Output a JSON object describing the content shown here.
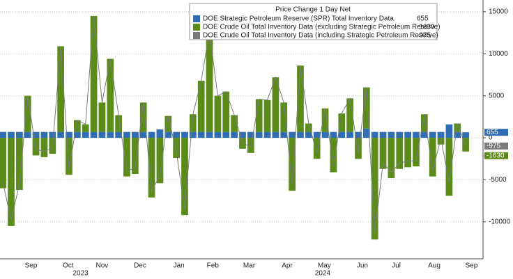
{
  "chart_data": {
    "type": "bar",
    "legend_title": "Price Change 1 Day Net",
    "legend": "top",
    "grid": true,
    "ylim": [
      -14400,
      16400
    ],
    "yticks": [
      -10000,
      -5000,
      0,
      5000,
      10000,
      15000
    ],
    "xlim": [
      -0.35,
      58.1
    ],
    "xticks": [
      {
        "value": 3.4,
        "label": "Sep"
      },
      {
        "value": 7.9,
        "label": "Oct"
      },
      {
        "value": 12.0,
        "label": "Nov"
      },
      {
        "value": 16.6,
        "label": "Dec"
      },
      {
        "value": 21.3,
        "label": "Jan"
      },
      {
        "value": 25.4,
        "label": "Feb"
      },
      {
        "value": 29.8,
        "label": "Mar"
      },
      {
        "value": 34.4,
        "label": "Apr"
      },
      {
        "value": 38.9,
        "label": "May"
      },
      {
        "value": 43.5,
        "label": "Jun"
      },
      {
        "value": 47.6,
        "label": "Jul"
      },
      {
        "value": 52.2,
        "label": "Aug"
      },
      {
        "value": 56.7,
        "label": "Sep"
      }
    ],
    "years": [
      {
        "value": 9.4,
        "label": "2023"
      },
      {
        "value": 38.7,
        "label": "2024"
      }
    ],
    "series": [
      {
        "name": "DOE Strategic Petroleum Reserve (SPR) Total Inventory Data",
        "color": "#2f6db5",
        "type": "bar",
        "values": [
          700,
          700,
          700,
          700,
          700,
          700,
          700,
          700,
          700,
          700,
          700,
          700,
          700,
          700,
          700,
          700,
          700,
          700,
          700,
          1000,
          700,
          700,
          700,
          700,
          700,
          700,
          700,
          700,
          700,
          700,
          700,
          700,
          700,
          700,
          700,
          700,
          700,
          700,
          700,
          700,
          700,
          700,
          700,
          700,
          1100,
          700,
          700,
          700,
          700,
          700,
          700,
          700,
          700,
          700,
          1600,
          700,
          655
        ]
      },
      {
        "name": "DOE Crude Oil Total Inventory Data (excluding Strategic Petroleum Reserve)",
        "color": "#5b8c1a",
        "type": "bar",
        "values": [
          -6000,
          -10500,
          -6200,
          4300,
          -2100,
          -2300,
          -1900,
          10200,
          -4400,
          1400,
          900,
          13800,
          3500,
          8700,
          2000,
          -4600,
          -4300,
          3500,
          -7100,
          -5400,
          1900,
          -2400,
          -9200,
          2100,
          6100,
          11900,
          4300,
          4800,
          2000,
          -1300,
          -1800,
          3900,
          3800,
          6500,
          3500,
          -6300,
          7900,
          1000,
          -2500,
          2800,
          -4100,
          2200,
          4000,
          -2500,
          4900,
          -12100,
          -3700,
          -4800,
          -3700,
          -3500,
          -3400,
          2100,
          -4600,
          -800,
          -6900,
          1000,
          -1630
        ]
      },
      {
        "name": "DOE Crude Oil Total Inventory Data (including Strategic Petroleum Reserve)",
        "color": "#7a7a7a",
        "type": "line",
        "values": [
          -5300,
          -9800,
          -5500,
          5000,
          -1400,
          -1600,
          -1200,
          10900,
          -3700,
          2100,
          1600,
          14500,
          4200,
          9400,
          2700,
          -3900,
          -3600,
          4200,
          -6400,
          -4400,
          2600,
          -1700,
          -8500,
          2800,
          6800,
          12600,
          5000,
          5500,
          2700,
          -600,
          -1100,
          4600,
          4500,
          7200,
          4200,
          -5600,
          8600,
          1700,
          -1800,
          3500,
          -3400,
          2900,
          4700,
          -1800,
          6000,
          -11400,
          -3000,
          -4100,
          -3000,
          -2800,
          -2700,
          2800,
          -3900,
          -100,
          -5300,
          1700,
          -975
        ]
      }
    ]
  }
}
